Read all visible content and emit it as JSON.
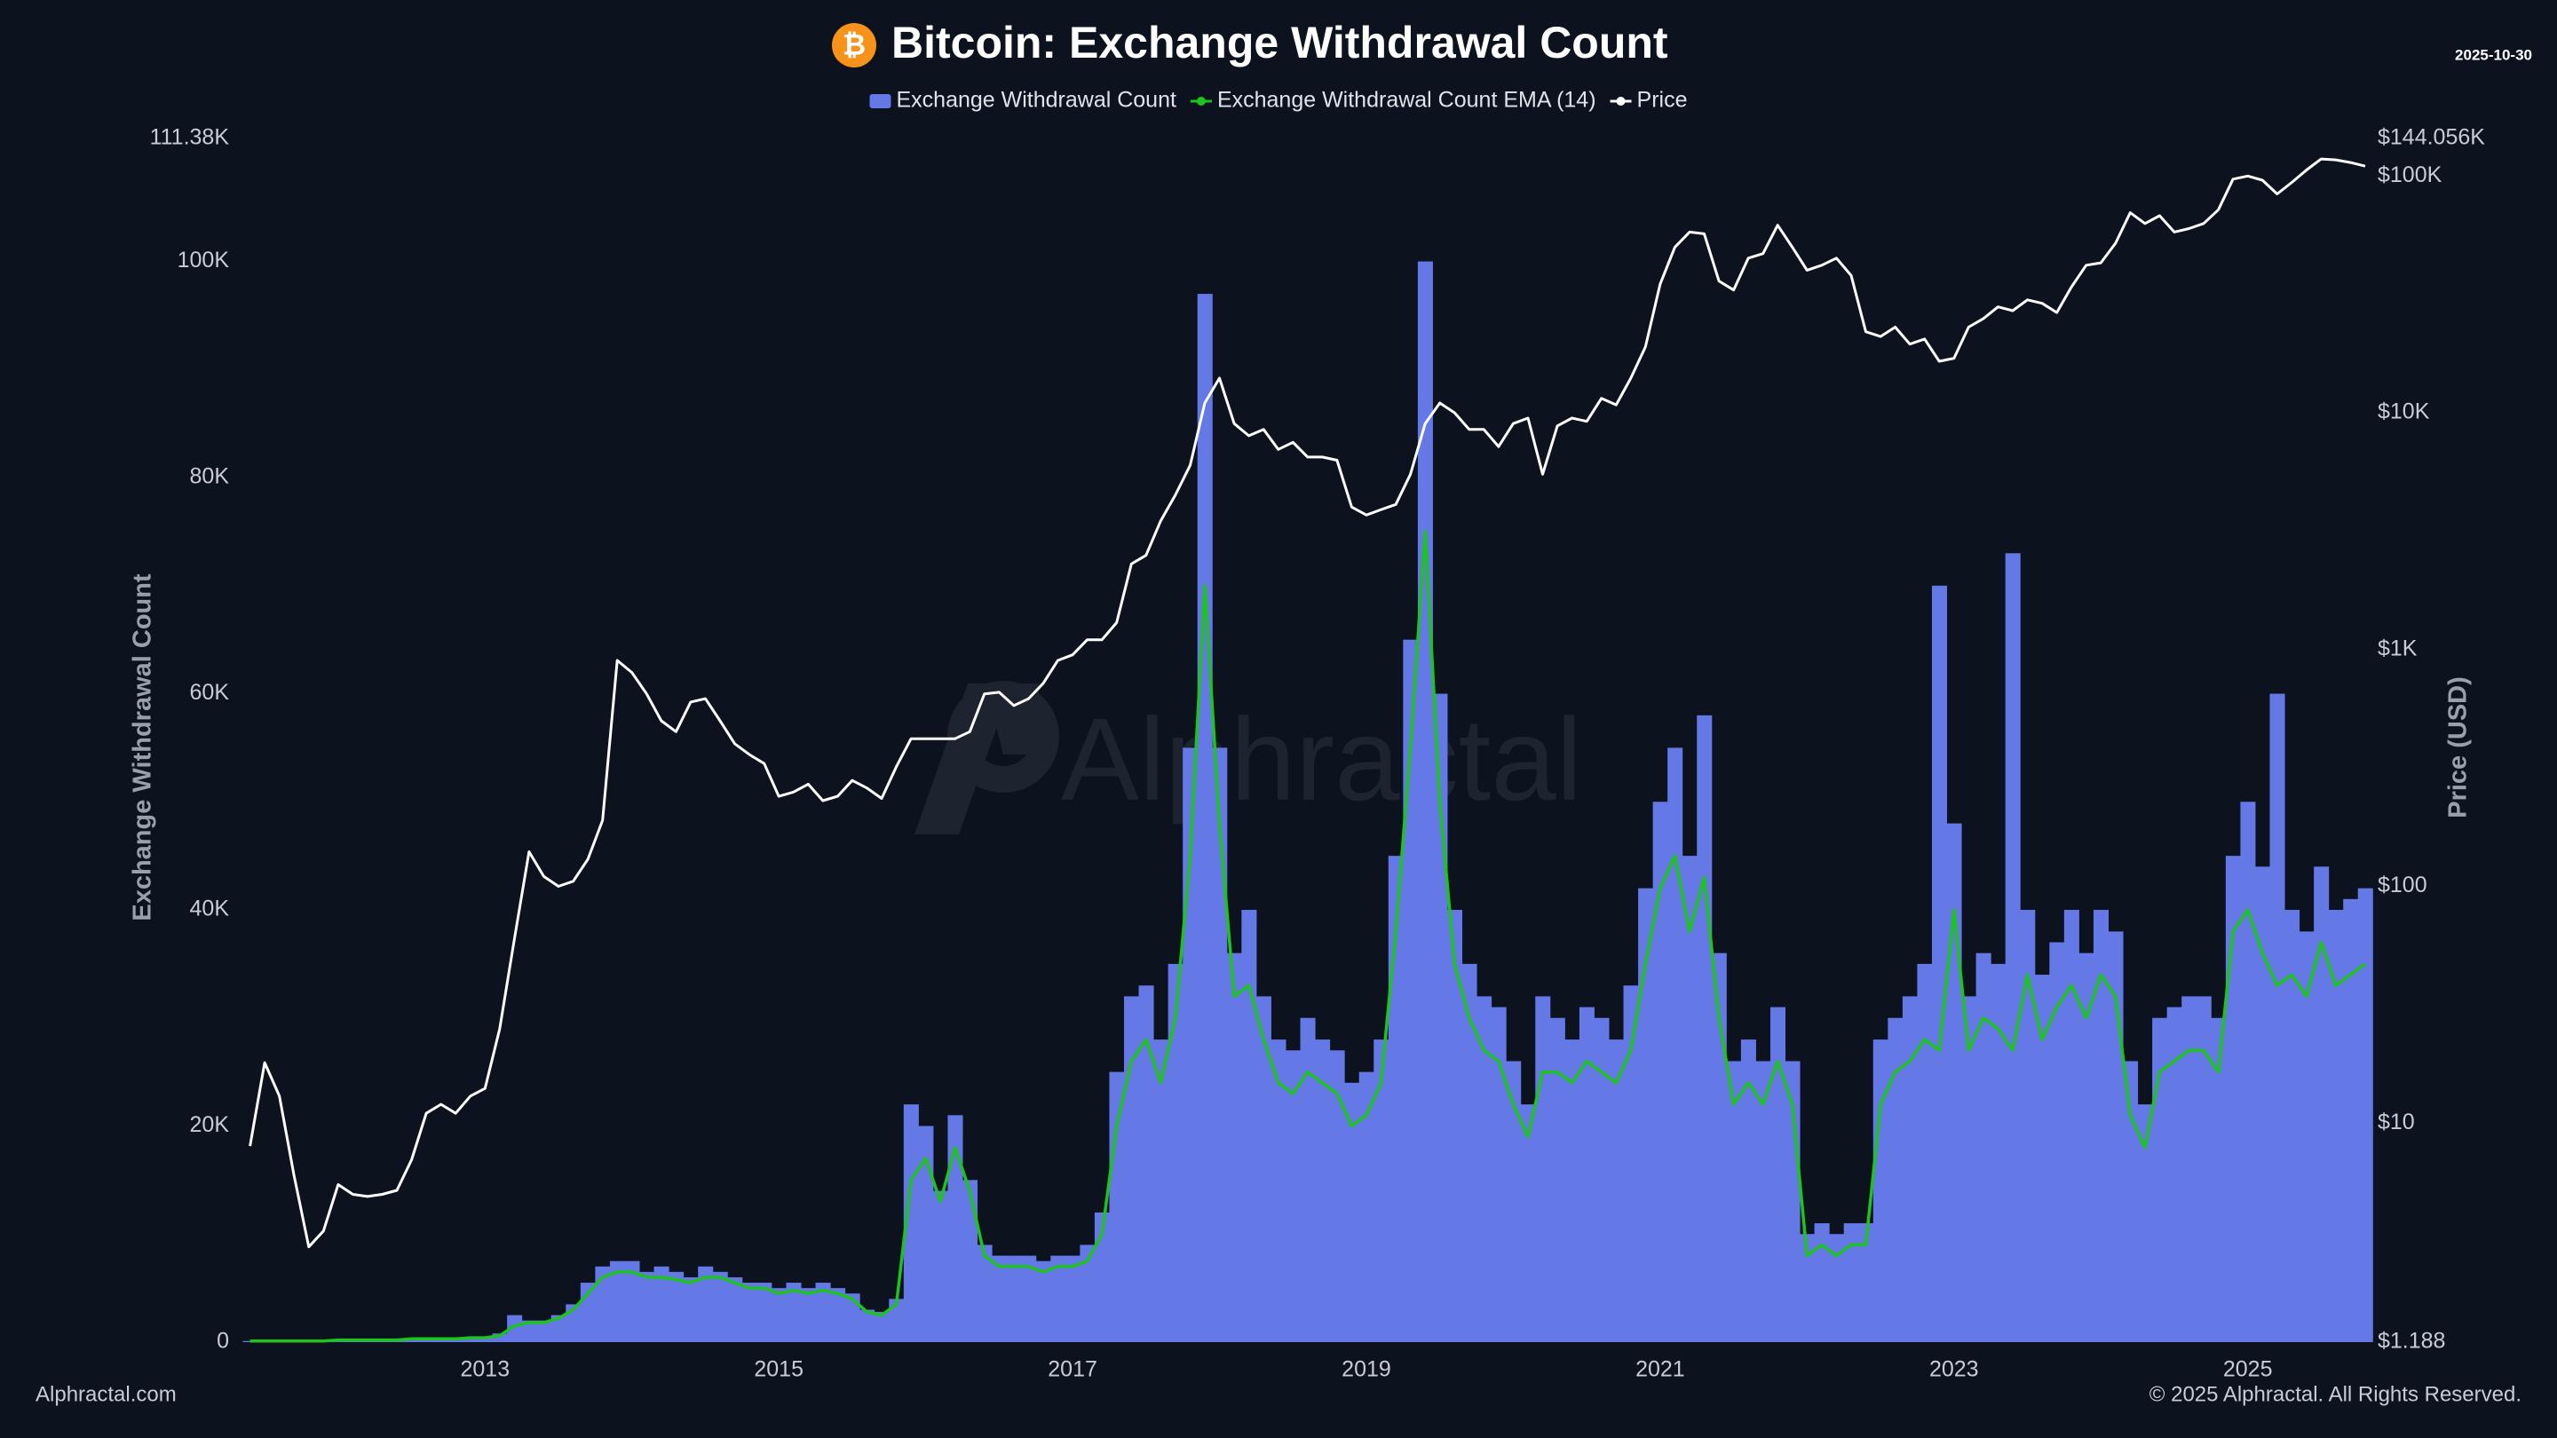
{
  "chart_data": {
    "type": "bar",
    "title": "Bitcoin: Exchange Withdrawal Count",
    "logo_symbol": "₿",
    "date": "2025-10-30",
    "watermark": "Alphractal",
    "source": "Alphractal.com",
    "copyright": "© 2025 Alphractal. All Rights Reserved.",
    "y_label": "Exchange Withdrawal Count",
    "y2_label": "Price (USD)",
    "y2scale": "log",
    "xlim": [
      2011.33,
      2025.83
    ],
    "xticks": [
      2013,
      2015,
      2017,
      2019,
      2021,
      2023,
      2025
    ],
    "ylim": [
      0,
      111380
    ],
    "yticks": [
      0,
      {
        "value": 20000,
        "label": "20K"
      },
      {
        "value": 40000,
        "label": "40K"
      },
      {
        "value": 60000,
        "label": "60K"
      },
      {
        "value": 80000,
        "label": "80K"
      },
      {
        "value": 100000,
        "label": "100K"
      },
      {
        "value": 111380,
        "label": "111.38K"
      }
    ],
    "y2lim": [
      1.188,
      144056
    ],
    "y2ticks": [
      {
        "value": 1.188,
        "label": "$1.188"
      },
      {
        "value": 10,
        "label": "$10"
      },
      {
        "value": 100,
        "label": "$100"
      },
      {
        "value": 1000,
        "label": "$1K"
      },
      {
        "value": 10000,
        "label": "$10K"
      },
      {
        "value": 100000,
        "label": "$100K"
      },
      {
        "value": 144056,
        "label": "$144.056K"
      }
    ],
    "x": [
      2011.4,
      2011.5,
      2011.6,
      2011.7,
      2011.8,
      2011.9,
      2012.0,
      2012.1,
      2012.2,
      2012.3,
      2012.4,
      2012.5,
      2012.6,
      2012.7,
      2012.8,
      2012.9,
      2013.0,
      2013.1,
      2013.2,
      2013.3,
      2013.4,
      2013.5,
      2013.6,
      2013.7,
      2013.8,
      2013.9,
      2014.0,
      2014.1,
      2014.2,
      2014.3,
      2014.4,
      2014.5,
      2014.6,
      2014.7,
      2014.8,
      2014.9,
      2015.0,
      2015.1,
      2015.2,
      2015.3,
      2015.4,
      2015.5,
      2015.6,
      2015.7,
      2015.8,
      2015.9,
      2016.0,
      2016.1,
      2016.2,
      2016.3,
      2016.4,
      2016.5,
      2016.6,
      2016.7,
      2016.8,
      2016.9,
      2017.0,
      2017.1,
      2017.2,
      2017.3,
      2017.4,
      2017.5,
      2017.6,
      2017.7,
      2017.8,
      2017.9,
      2018.0,
      2018.1,
      2018.2,
      2018.3,
      2018.4,
      2018.5,
      2018.6,
      2018.7,
      2018.8,
      2018.9,
      2019.0,
      2019.1,
      2019.2,
      2019.3,
      2019.4,
      2019.5,
      2019.6,
      2019.7,
      2019.8,
      2019.9,
      2020.0,
      2020.1,
      2020.2,
      2020.3,
      2020.4,
      2020.5,
      2020.6,
      2020.7,
      2020.8,
      2020.9,
      2021.0,
      2021.1,
      2021.2,
      2021.3,
      2021.4,
      2021.5,
      2021.6,
      2021.7,
      2021.8,
      2021.9,
      2022.0,
      2022.1,
      2022.2,
      2022.3,
      2022.4,
      2022.5,
      2022.6,
      2022.7,
      2022.8,
      2022.9,
      2023.0,
      2023.1,
      2023.2,
      2023.3,
      2023.4,
      2023.5,
      2023.6,
      2023.7,
      2023.8,
      2023.9,
      2024.0,
      2024.1,
      2024.2,
      2024.3,
      2024.4,
      2024.5,
      2024.6,
      2024.7,
      2024.8,
      2024.9,
      2025.0,
      2025.1,
      2025.2,
      2025.3,
      2025.4,
      2025.5,
      2025.6,
      2025.7,
      2025.8
    ],
    "series": [
      {
        "name": "Exchange Withdrawal Count",
        "type": "bar",
        "color": "#6478e6",
        "values": [
          100,
          100,
          100,
          100,
          100,
          100,
          200,
          200,
          200,
          200,
          200,
          300,
          300,
          300,
          300,
          400,
          500,
          800,
          2500,
          2000,
          2000,
          2500,
          3500,
          5500,
          7000,
          7500,
          7500,
          6500,
          7000,
          6500,
          6000,
          7000,
          6500,
          6000,
          5500,
          5500,
          5000,
          5500,
          5000,
          5500,
          5000,
          4500,
          3000,
          2800,
          4000,
          22000,
          20000,
          14000,
          21000,
          15000,
          9000,
          8000,
          8000,
          8000,
          7500,
          8000,
          8000,
          9000,
          12000,
          25000,
          32000,
          33000,
          28000,
          35000,
          55000,
          97000,
          55000,
          36000,
          40000,
          32000,
          28000,
          27000,
          30000,
          28000,
          27000,
          24000,
          25000,
          28000,
          45000,
          65000,
          100000,
          60000,
          40000,
          35000,
          32000,
          31000,
          26000,
          22000,
          32000,
          30000,
          28000,
          31000,
          30000,
          28000,
          33000,
          42000,
          50000,
          55000,
          45000,
          58000,
          36000,
          26000,
          28000,
          26000,
          31000,
          26000,
          10000,
          11000,
          10000,
          11000,
          11000,
          28000,
          30000,
          32000,
          35000,
          70000,
          48000,
          32000,
          36000,
          35000,
          73000,
          40000,
          34000,
          37000,
          40000,
          36000,
          40000,
          38000,
          26000,
          22000,
          30000,
          31000,
          32000,
          32000,
          30000,
          45000,
          50000,
          44000,
          60000,
          40000,
          38000,
          44000,
          40000,
          41000,
          42000
        ]
      },
      {
        "name": "Exchange Withdrawal Count EMA (14)",
        "type": "line",
        "color": "#1ec41e",
        "values": [
          100,
          100,
          100,
          100,
          100,
          100,
          200,
          200,
          200,
          200,
          200,
          300,
          300,
          300,
          300,
          400,
          400,
          600,
          1500,
          1800,
          1800,
          2200,
          3000,
          4500,
          6000,
          6500,
          6500,
          6000,
          6000,
          5800,
          5500,
          6000,
          6000,
          5500,
          5000,
          5000,
          4500,
          4800,
          4500,
          4800,
          4500,
          4000,
          2800,
          2500,
          3500,
          15000,
          17000,
          13000,
          18000,
          14000,
          8000,
          7000,
          7000,
          7000,
          6500,
          7000,
          7000,
          7500,
          10000,
          20000,
          26000,
          28000,
          24000,
          30000,
          45000,
          70000,
          48000,
          32000,
          33000,
          28000,
          24000,
          23000,
          25000,
          24000,
          23000,
          20000,
          21000,
          24000,
          38000,
          55000,
          75000,
          50000,
          35000,
          30000,
          27000,
          26000,
          22000,
          19000,
          25000,
          25000,
          24000,
          26000,
          25000,
          24000,
          27000,
          35000,
          42000,
          45000,
          38000,
          43000,
          30000,
          22000,
          24000,
          22000,
          26000,
          22000,
          8000,
          9000,
          8000,
          9000,
          9000,
          22000,
          25000,
          26000,
          28000,
          27000,
          40000,
          27000,
          30000,
          29000,
          27000,
          34000,
          28000,
          31000,
          33000,
          30000,
          34000,
          32000,
          21000,
          18000,
          25000,
          26000,
          27000,
          27000,
          25000,
          38000,
          40000,
          36000,
          33000,
          34000,
          32000,
          37000,
          33000,
          34000,
          35000
        ]
      },
      {
        "name": "Price",
        "type": "line",
        "axis": "y2",
        "color": "#ffffff",
        "values": [
          8,
          18,
          13,
          6,
          3,
          3.5,
          5.5,
          5,
          4.9,
          5,
          5.2,
          7,
          11,
          12,
          11,
          13,
          14,
          25,
          60,
          140,
          110,
          100,
          105,
          130,
          190,
          900,
          800,
          650,
          500,
          450,
          600,
          620,
          500,
          400,
          360,
          330,
          240,
          250,
          270,
          230,
          240,
          280,
          260,
          235,
          320,
          420,
          420,
          420,
          420,
          450,
          650,
          660,
          580,
          620,
          720,
          900,
          950,
          1100,
          1100,
          1300,
          2300,
          2500,
          3500,
          4500,
          6000,
          11000,
          14000,
          9000,
          8000,
          8500,
          7000,
          7500,
          6500,
          6500,
          6300,
          4000,
          3700,
          3900,
          4100,
          5500,
          9000,
          11000,
          10000,
          8500,
          8500,
          7200,
          9000,
          9500,
          5500,
          8800,
          9500,
          9200,
          11500,
          10800,
          14000,
          19000,
          35000,
          50000,
          58000,
          57000,
          36000,
          33000,
          45000,
          47000,
          62000,
          50000,
          40000,
          42000,
          45000,
          38000,
          22000,
          21000,
          23000,
          19500,
          20500,
          16500,
          17000,
          23000,
          25000,
          28000,
          27000,
          30000,
          29000,
          26500,
          34000,
          42000,
          43000,
          52000,
          70000,
          63000,
          68000,
          58000,
          60000,
          63000,
          72000,
          97000,
          100000,
          96000,
          84000,
          94000,
          106000,
          118000,
          117000,
          114000,
          110000
        ]
      }
    ]
  }
}
